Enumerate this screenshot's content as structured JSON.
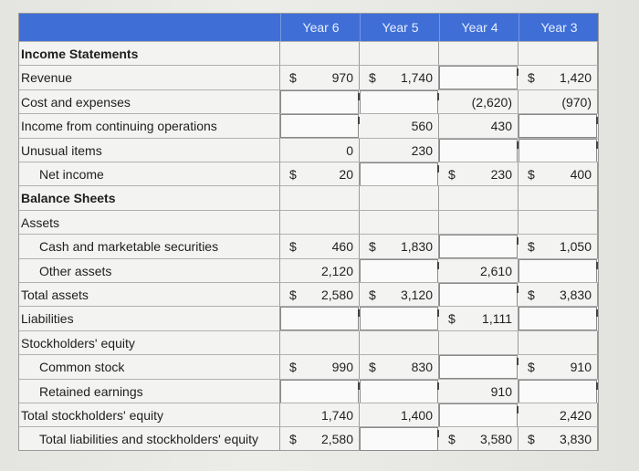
{
  "headers": [
    "Year 6",
    "Year 5",
    "Year 4",
    "Year 3"
  ],
  "rows": [
    {
      "label": "Income Statements",
      "bold": true,
      "indent": 0,
      "cells": [
        null,
        null,
        null,
        null
      ]
    },
    {
      "label": "Revenue",
      "bold": false,
      "indent": 0,
      "cells": [
        {
          "dollar": "$",
          "value": "970"
        },
        {
          "dollar": "$",
          "value": "1,740"
        },
        {
          "input": true
        },
        {
          "dollar": "$",
          "value": "1,420"
        }
      ]
    },
    {
      "label": "Cost and expenses",
      "bold": false,
      "indent": 0,
      "cells": [
        {
          "input": true
        },
        {
          "input": true
        },
        {
          "value": "(2,620)"
        },
        {
          "value": "(970)"
        }
      ]
    },
    {
      "label": "Income from continuing operations",
      "bold": false,
      "indent": 0,
      "cells": [
        {
          "input": true
        },
        {
          "value": "560"
        },
        {
          "value": "430"
        },
        {
          "input": true
        }
      ]
    },
    {
      "label": "Unusual items",
      "bold": false,
      "indent": 0,
      "cells": [
        {
          "value": "0"
        },
        {
          "value": "230"
        },
        {
          "input": true
        },
        {
          "input": true
        }
      ]
    },
    {
      "label": "Net income",
      "bold": false,
      "indent": 1,
      "cells": [
        {
          "dollar": "$",
          "value": "20"
        },
        {
          "input": true
        },
        {
          "dollar": "$",
          "value": "230"
        },
        {
          "dollar": "$",
          "value": "400"
        }
      ]
    },
    {
      "label": "Balance Sheets",
      "bold": true,
      "indent": 0,
      "cells": [
        null,
        null,
        null,
        null
      ]
    },
    {
      "label": "Assets",
      "bold": false,
      "indent": 0,
      "cells": [
        null,
        null,
        null,
        null
      ]
    },
    {
      "label": "Cash and marketable securities",
      "bold": false,
      "indent": 1,
      "cells": [
        {
          "dollar": "$",
          "value": "460"
        },
        {
          "dollar": "$",
          "value": "1,830"
        },
        {
          "input": true
        },
        {
          "dollar": "$",
          "value": "1,050"
        }
      ]
    },
    {
      "label": "Other assets",
      "bold": false,
      "indent": 1,
      "cells": [
        {
          "value": "2,120"
        },
        {
          "input": true
        },
        {
          "value": "2,610"
        },
        {
          "input": true
        }
      ]
    },
    {
      "label": "Total assets",
      "bold": false,
      "indent": 0,
      "cells": [
        {
          "dollar": "$",
          "value": "2,580"
        },
        {
          "dollar": "$",
          "value": "3,120"
        },
        {
          "input": true
        },
        {
          "dollar": "$",
          "value": "3,830"
        }
      ]
    },
    {
      "label": "Liabilities",
      "bold": false,
      "indent": 0,
      "cells": [
        {
          "input": true
        },
        {
          "input": true
        },
        {
          "dollar": "$",
          "value": "1,111"
        },
        {
          "input": true
        }
      ]
    },
    {
      "label": "Stockholders' equity",
      "bold": false,
      "indent": 0,
      "cells": [
        null,
        null,
        null,
        null
      ]
    },
    {
      "label": "Common stock",
      "bold": false,
      "indent": 1,
      "cells": [
        {
          "dollar": "$",
          "value": "990"
        },
        {
          "dollar": "$",
          "value": "830"
        },
        {
          "input": true
        },
        {
          "dollar": "$",
          "value": "910"
        }
      ]
    },
    {
      "label": "Retained earnings",
      "bold": false,
      "indent": 1,
      "cells": [
        {
          "input": true
        },
        {
          "input": true
        },
        {
          "value": "910"
        },
        {
          "input": true
        }
      ]
    },
    {
      "label": "Total stockholders' equity",
      "bold": false,
      "indent": 0,
      "cells": [
        {
          "value": "1,740"
        },
        {
          "value": "1,400"
        },
        {
          "input": true
        },
        {
          "value": "2,420"
        }
      ]
    },
    {
      "label": "Total liabilities and stockholders' equity",
      "bold": false,
      "indent": 1,
      "cells": [
        {
          "dollar": "$",
          "value": "2,580"
        },
        {
          "input": true
        },
        {
          "dollar": "$",
          "value": "3,580"
        },
        {
          "dollar": "$",
          "value": "3,830"
        }
      ]
    }
  ]
}
